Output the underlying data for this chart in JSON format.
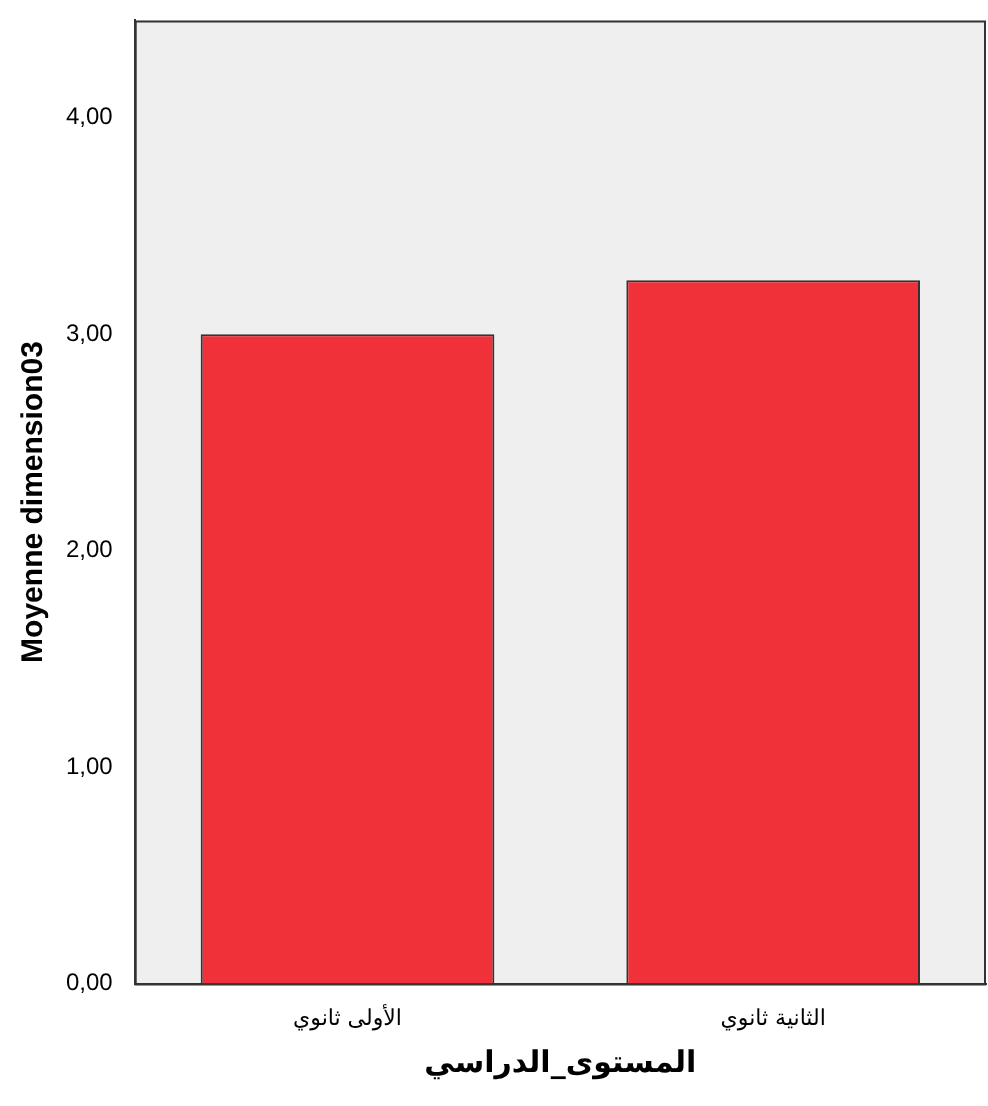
{
  "chart_data": {
    "type": "bar",
    "xlabel": "المستوى_الدراسي",
    "ylabel": "Moyenne dimension03",
    "categories": [
      "الأولى ثانوي",
      "الثانية ثانوي"
    ],
    "values": [
      3.0,
      3.25
    ],
    "color": "#f0313a",
    "ylim": [
      0,
      4.45
    ],
    "yticks": [
      {
        "value": 0,
        "label": "0,00"
      },
      {
        "value": 1,
        "label": "1,00"
      },
      {
        "value": 2,
        "label": "2,00"
      },
      {
        "value": 3,
        "label": "3,00"
      },
      {
        "value": 4,
        "label": "4,00"
      }
    ],
    "grid": false,
    "legend": false
  }
}
